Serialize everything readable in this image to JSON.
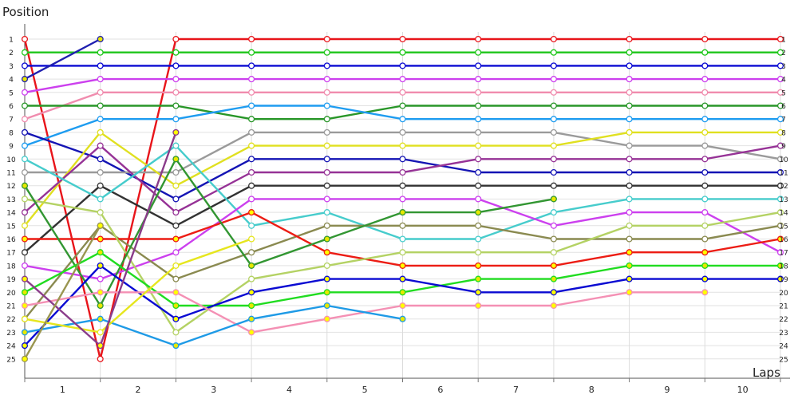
{
  "chart_data": {
    "type": "line",
    "title": "",
    "ylabel": "Position",
    "xlabel": "Laps",
    "x_tick_labels": [
      "1",
      "2",
      "3",
      "4",
      "5",
      "6",
      "7",
      "8",
      "9",
      "10"
    ],
    "y_tick_labels": [
      "1",
      "2",
      "3",
      "4",
      "5",
      "6",
      "7",
      "8",
      "9",
      "10",
      "11",
      "12",
      "13",
      "14",
      "15",
      "16",
      "17",
      "18",
      "19",
      "20",
      "21",
      "22",
      "23",
      "24",
      "25"
    ],
    "x": [
      0,
      1,
      2,
      3,
      4,
      5,
      6,
      7,
      8,
      9,
      10
    ],
    "ylim": [
      1,
      25
    ],
    "y_inverted": true,
    "grid": true,
    "marker_fill": "#fff",
    "series": [
      {
        "color": "#e8141a",
        "marker": "#ffffff",
        "values": [
          1,
          25,
          1,
          1,
          1,
          1,
          1,
          1,
          1,
          1,
          1
        ]
      },
      {
        "color": "#1ec61a",
        "marker": "#ffffff",
        "values": [
          2,
          2,
          2,
          2,
          2,
          2,
          2,
          2,
          2,
          2,
          2
        ]
      },
      {
        "color": "#0a0ad2",
        "marker": "#ffffff",
        "values": [
          3,
          3,
          3,
          3,
          3,
          3,
          3,
          3,
          3,
          3,
          3
        ]
      },
      {
        "color": "#2020b0",
        "marker": "#e8e800",
        "values": [
          4,
          1,
          null,
          null,
          null,
          null,
          null,
          null,
          null,
          null,
          null
        ]
      },
      {
        "color": "#cc40ee",
        "marker": "#ffffff",
        "values": [
          5,
          4,
          4,
          4,
          4,
          4,
          4,
          4,
          4,
          4,
          4
        ]
      },
      {
        "color": "#f08cae",
        "marker": "#ffffff",
        "values": [
          7,
          5,
          5,
          5,
          5,
          5,
          5,
          5,
          5,
          5,
          5
        ]
      },
      {
        "color": "#289628",
        "marker": "#ffffff",
        "values": [
          6,
          6,
          6,
          7,
          7,
          6,
          6,
          6,
          6,
          6,
          6
        ]
      },
      {
        "color": "#1e9cf0",
        "marker": "#ffffff",
        "values": [
          9,
          7,
          7,
          6,
          6,
          7,
          7,
          7,
          7,
          7,
          7
        ]
      },
      {
        "color": "#1414b4",
        "marker": "#ffffff",
        "values": [
          8,
          10,
          13,
          10,
          10,
          10,
          11,
          11,
          11,
          11,
          11
        ]
      },
      {
        "color": "#9a9a9a",
        "marker": "#ffffff",
        "values": [
          11,
          11,
          11,
          8,
          8,
          8,
          8,
          8,
          9,
          9,
          10
        ]
      },
      {
        "color": "#e0e020",
        "marker": "#ffffff",
        "values": [
          15,
          8,
          12,
          9,
          9,
          9,
          9,
          9,
          8,
          8,
          8
        ]
      },
      {
        "color": "#963296",
        "marker": "#ffffff",
        "values": [
          14,
          9,
          14,
          11,
          11,
          11,
          10,
          10,
          10,
          10,
          9
        ]
      },
      {
        "color": "#323232",
        "marker": "#ffffff",
        "values": [
          17,
          12,
          15,
          12,
          12,
          12,
          12,
          12,
          12,
          12,
          12
        ]
      },
      {
        "color": "#46cccc",
        "marker": "#ffffff",
        "values": [
          10,
          13,
          9,
          15,
          14,
          16,
          16,
          14,
          13,
          13,
          13
        ]
      },
      {
        "color": "#cc40ee",
        "marker": "#ffffff",
        "values": [
          18,
          19,
          17,
          13,
          13,
          13,
          13,
          15,
          14,
          14,
          17
        ]
      },
      {
        "color": "#8a8a50",
        "marker": "#ffffff",
        "values": [
          22,
          15,
          19,
          17,
          15,
          15,
          15,
          16,
          16,
          16,
          15
        ]
      },
      {
        "color": "#ec1c14",
        "marker": "#ffff00",
        "values": [
          16,
          16,
          16,
          14,
          17,
          18,
          18,
          18,
          17,
          17,
          16
        ]
      },
      {
        "color": "#b4d264",
        "marker": "#ffffff",
        "values": [
          13,
          14,
          23,
          19,
          18,
          17,
          17,
          17,
          15,
          15,
          14
        ]
      },
      {
        "color": "#329632",
        "marker": "#e8e800",
        "values": [
          12,
          21,
          10,
          18,
          16,
          14,
          14,
          13,
          null,
          null,
          null
        ]
      },
      {
        "color": "#20dc20",
        "marker": "#e8e800",
        "values": [
          20,
          17,
          21,
          21,
          20,
          20,
          19,
          19,
          18,
          18,
          18
        ]
      },
      {
        "color": "#0a0ad2",
        "marker": "#ffff00",
        "values": [
          24,
          18,
          22,
          20,
          19,
          19,
          20,
          20,
          19,
          19,
          19
        ]
      },
      {
        "color": "#f490b4",
        "marker": "#ffff00",
        "values": [
          21,
          20,
          20,
          23,
          22,
          21,
          21,
          21,
          20,
          20,
          null
        ]
      },
      {
        "color": "#1e9ae6",
        "marker": "#e8e800",
        "values": [
          23,
          22,
          24,
          22,
          21,
          22,
          null,
          null,
          null,
          null,
          null
        ]
      },
      {
        "color": "#e6e61e",
        "marker": "#ffffff",
        "values": [
          22,
          23,
          18,
          16,
          null,
          null,
          null,
          null,
          null,
          null,
          null
        ]
      },
      {
        "color": "#8a3c8a",
        "marker": "#ffff00",
        "values": [
          19,
          24,
          8,
          null,
          null,
          null,
          null,
          null,
          null,
          null,
          null
        ]
      },
      {
        "color": "#9a9650",
        "marker": "#ffff00",
        "values": [
          25,
          15,
          null,
          null,
          null,
          null,
          null,
          null,
          null,
          null,
          null
        ]
      }
    ]
  }
}
